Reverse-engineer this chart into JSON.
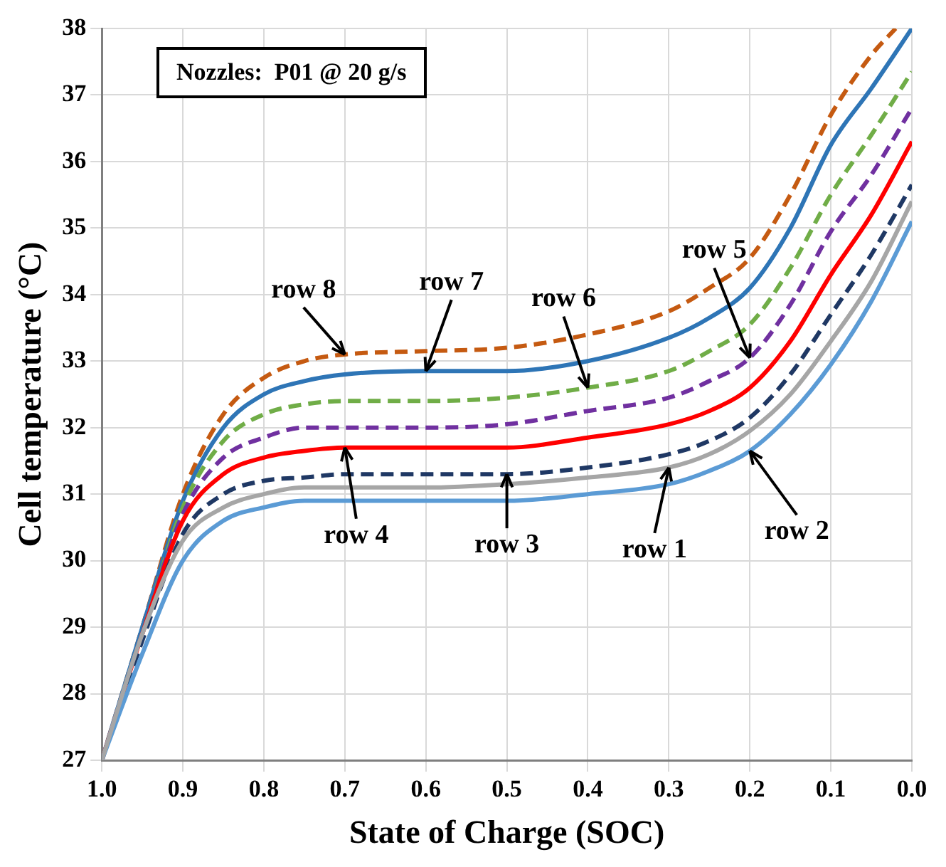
{
  "chart_data": {
    "type": "line",
    "xlabel": "State of Charge (SOC)",
    "ylabel": "Cell temperature (°C)",
    "annotations": [
      "Nozzles:  P01 @ 20 g/s",
      {
        "text": "row 1",
        "x": 0.3,
        "y": 31.4
      },
      {
        "text": "row 2",
        "x": 0.2,
        "y": 31.65
      },
      {
        "text": "row 3",
        "x": 0.5,
        "y": 31.3
      },
      {
        "text": "row 4",
        "x": 0.7,
        "y": 31.7
      },
      {
        "text": "row 5",
        "x": 0.2,
        "y": 33.05
      },
      {
        "text": "row 6",
        "x": 0.4,
        "y": 32.6
      },
      {
        "text": "row 7",
        "x": 0.6,
        "y": 32.85
      },
      {
        "text": "row 8",
        "x": 0.7,
        "y": 33.1
      }
    ],
    "x": [
      1.0,
      0.95,
      0.9,
      0.85,
      0.8,
      0.75,
      0.7,
      0.6,
      0.5,
      0.4,
      0.3,
      0.25,
      0.2,
      0.15,
      0.1,
      0.05,
      0.0
    ],
    "xlim": [
      1.0,
      0.0
    ],
    "xticks": [
      {
        "value": 1.0,
        "label": "1.0"
      },
      {
        "value": 0.9,
        "label": "0.9"
      },
      {
        "value": 0.8,
        "label": "0.8"
      },
      {
        "value": 0.7,
        "label": "0.7"
      },
      {
        "value": 0.6,
        "label": "0.6"
      },
      {
        "value": 0.5,
        "label": "0.5"
      },
      {
        "value": 0.4,
        "label": "0.4"
      },
      {
        "value": 0.3,
        "label": "0.3"
      },
      {
        "value": 0.2,
        "label": "0.2"
      },
      {
        "value": 0.1,
        "label": "0.1"
      },
      {
        "value": 0.0,
        "label": "0.0"
      }
    ],
    "ylim": [
      27,
      38
    ],
    "yticks": [
      27,
      28,
      29,
      30,
      31,
      32,
      33,
      34,
      35,
      36,
      37,
      38
    ],
    "grid": true,
    "legend": false,
    "marker": "none",
    "series": [
      {
        "color": "#a6a6a6",
        "line_style": "solid",
        "values": [
          27,
          28.9,
          30.3,
          30.8,
          31.0,
          31.1,
          31.1,
          31.1,
          31.15,
          31.25,
          31.4,
          31.6,
          31.95,
          32.5,
          33.3,
          34.2,
          35.4
        ]
      },
      {
        "color": "#5b9bd5",
        "line_style": "solid",
        "values": [
          27,
          28.6,
          30.0,
          30.6,
          30.8,
          30.9,
          30.9,
          30.9,
          30.9,
          31.0,
          31.15,
          31.35,
          31.65,
          32.2,
          32.95,
          33.9,
          35.1
        ]
      },
      {
        "color": "#1f3864",
        "line_style": "dashed",
        "values": [
          27,
          28.8,
          30.4,
          31.0,
          31.2,
          31.25,
          31.3,
          31.3,
          31.3,
          31.4,
          31.6,
          31.8,
          32.15,
          32.8,
          33.7,
          34.6,
          35.65
        ]
      },
      {
        "color": "#ff0000",
        "line_style": "solid",
        "values": [
          27,
          28.9,
          30.6,
          31.3,
          31.55,
          31.65,
          31.7,
          31.7,
          31.7,
          31.85,
          32.05,
          32.25,
          32.6,
          33.3,
          34.3,
          35.2,
          36.3
        ]
      },
      {
        "color": "#7030a0",
        "line_style": "dashed",
        "values": [
          27,
          28.9,
          30.7,
          31.55,
          31.85,
          32.0,
          32.0,
          32.0,
          32.05,
          32.25,
          32.45,
          32.7,
          33.05,
          33.85,
          34.95,
          35.8,
          36.8
        ]
      },
      {
        "color": "#70ad47",
        "line_style": "dashed",
        "values": [
          27,
          28.9,
          30.8,
          31.8,
          32.2,
          32.35,
          32.4,
          32.4,
          32.45,
          32.6,
          32.85,
          33.15,
          33.55,
          34.4,
          35.5,
          36.4,
          37.35
        ]
      },
      {
        "color": "#2e75b6",
        "line_style": "solid",
        "values": [
          27,
          29.0,
          30.9,
          32.0,
          32.5,
          32.7,
          32.8,
          32.85,
          32.85,
          33.0,
          33.35,
          33.65,
          34.1,
          35.0,
          36.25,
          37.1,
          38.0
        ]
      },
      {
        "color": "#c55a11",
        "line_style": "dashed",
        "x": [
          1.0,
          0.95,
          0.9,
          0.85,
          0.8,
          0.75,
          0.7,
          0.6,
          0.5,
          0.4,
          0.3,
          0.25,
          0.2,
          0.15,
          0.1,
          0.05,
          0.02
        ],
        "values": [
          27,
          29.0,
          31.0,
          32.2,
          32.75,
          33.0,
          33.1,
          33.15,
          33.2,
          33.4,
          33.75,
          34.1,
          34.55,
          35.5,
          36.7,
          37.6,
          38.0
        ]
      }
    ]
  }
}
